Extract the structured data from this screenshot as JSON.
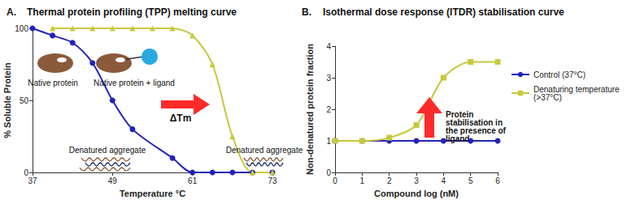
{
  "chart_data": [
    {
      "type": "line",
      "panel": "A.",
      "title": "Thermal protein profiling (TPP) melting curve",
      "x_label": "Temperature °C",
      "y_label": "% Soluble Protein",
      "xlim": [
        37,
        73
      ],
      "xticks": [
        37,
        49,
        61,
        73
      ],
      "ylim": [
        0,
        100
      ],
      "yticks": [
        0,
        50,
        100
      ],
      "grid": false,
      "annotations": [
        "Native protein",
        "Native protein + ligand",
        "Denatured aggregate",
        "ΔTm",
        "Denatured aggregate"
      ],
      "series": [
        {
          "color": "#2323b8",
          "marker": "circle",
          "line_style": "solid",
          "x": [
            37,
            40,
            43,
            46,
            49,
            52,
            58,
            61,
            64,
            67,
            70,
            73
          ],
          "values": [
            100,
            95,
            90,
            76,
            50,
            30,
            10,
            0,
            0,
            0,
            0,
            0
          ]
        },
        {
          "color": "#c8c83c",
          "marker": "triangle",
          "line_style": "solid",
          "x": [
            40,
            43,
            46,
            49,
            52,
            55,
            58,
            61,
            64,
            67,
            70,
            73
          ],
          "values": [
            100,
            100,
            100,
            100,
            100,
            100,
            100,
            95,
            75,
            25,
            0,
            0
          ]
        }
      ]
    },
    {
      "type": "line",
      "panel": "B.",
      "title": "Isothermal dose response (ITDR) stabilisation curve",
      "x_label": "Compound log (nM)",
      "y_label": "Non-denatured protein fraction",
      "xlim": [
        0,
        6
      ],
      "xticks": [
        0,
        1,
        2,
        3,
        4,
        5,
        6
      ],
      "ylim": [
        0,
        4
      ],
      "yticks": [
        0,
        1,
        2,
        3,
        4
      ],
      "grid": false,
      "legend": "right",
      "annotations": [
        "Protein stabilisation in the presence of ligand"
      ],
      "series": [
        {
          "name": "Control (37°C)",
          "color": "#2323b8",
          "marker": "circle",
          "line_style": "solid",
          "x": [
            0,
            1,
            2,
            3,
            4,
            5,
            6
          ],
          "values": [
            1,
            1,
            1,
            1,
            1,
            1,
            1
          ]
        },
        {
          "name": "Denaturing temperature (>37°C)",
          "color": "#c8c83c",
          "marker": "square",
          "line_style": "solid",
          "x": [
            0,
            1,
            2,
            3,
            4,
            5,
            6
          ],
          "values": [
            1,
            1,
            1.1,
            1.5,
            3,
            3.5,
            3.5
          ]
        }
      ]
    }
  ]
}
